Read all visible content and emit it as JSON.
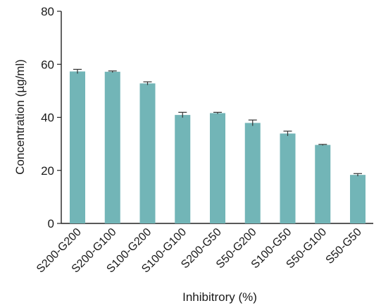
{
  "chart_data": {
    "type": "bar",
    "title": "",
    "xlabel": "Inhibitrory (%)",
    "ylabel": "Concentration (µg/ml)",
    "ylim": [
      0,
      80
    ],
    "yticks": [
      0,
      20,
      40,
      60,
      80
    ],
    "categories": [
      "S200-G200",
      "S200-G100",
      "S100-G200",
      "S100-G100",
      "S200-G50",
      "S50-G200",
      "S100-G50",
      "S50-G100",
      "S50-G50"
    ],
    "values": [
      57.3,
      57.2,
      52.8,
      40.9,
      41.6,
      37.9,
      33.9,
      29.6,
      18.3
    ],
    "errors": [
      0.8,
      0.3,
      0.6,
      1.0,
      0.3,
      1.1,
      0.9,
      0.2,
      0.5
    ],
    "bar_color": "#72b5b7",
    "error_color": "#333333",
    "grid": false,
    "legend": "none"
  }
}
